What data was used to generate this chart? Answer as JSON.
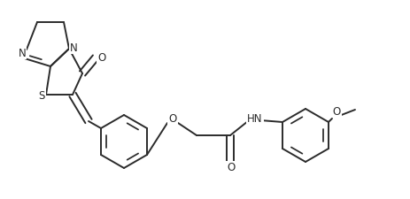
{
  "bg_color": "#ffffff",
  "line_color": "#2b2b2b",
  "line_width": 1.4,
  "font_size": 8.5,
  "figsize": [
    4.63,
    2.26
  ],
  "dpi": 100,
  "xlim": [
    0,
    4.63
  ],
  "ylim": [
    0,
    2.26
  ]
}
